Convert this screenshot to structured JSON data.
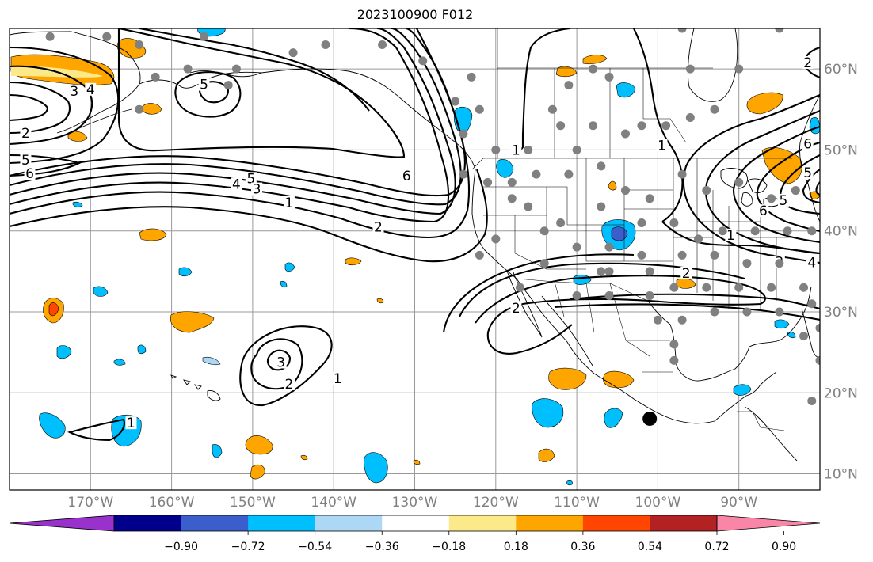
{
  "title": "2023100900 F012",
  "map": {
    "lon_range": [
      -180,
      -80
    ],
    "lat_range": [
      8,
      65
    ],
    "lon_ticks": [
      {
        "value": -170,
        "label": "170°W"
      },
      {
        "value": -160,
        "label": "160°W"
      },
      {
        "value": -150,
        "label": "150°W"
      },
      {
        "value": -140,
        "label": "140°W"
      },
      {
        "value": -130,
        "label": "130°W"
      },
      {
        "value": -120,
        "label": "120°W"
      },
      {
        "value": -110,
        "label": "110°W"
      },
      {
        "value": -100,
        "label": "100°W"
      },
      {
        "value": -90,
        "label": "90°W"
      }
    ],
    "lat_ticks": [
      {
        "value": 60,
        "label": "60°N"
      },
      {
        "value": 50,
        "label": "50°N"
      },
      {
        "value": 40,
        "label": "40°N"
      },
      {
        "value": 30,
        "label": "30°N"
      },
      {
        "value": 20,
        "label": "20°N"
      },
      {
        "value": 10,
        "label": "10°N"
      }
    ],
    "gridlines": true
  },
  "colorbar": {
    "ticks": [
      "−0.90",
      "−0.72",
      "−0.54",
      "−0.36",
      "−0.18",
      "0.18",
      "0.36",
      "0.54",
      "0.72",
      "0.90"
    ],
    "colors": [
      "#9932cc",
      "#00008b",
      "#3a5fcd",
      "#00bfff",
      "#add8f5",
      "#ffffff",
      "#fce98a",
      "#ffa500",
      "#ff4500",
      "#b22222",
      "#f986a6"
    ],
    "extend": "both"
  },
  "contour_labels": [
    {
      "text": "1",
      "lon": -165,
      "lat": 16.0
    },
    {
      "text": "3",
      "lon": -146.5,
      "lat": 23.5
    },
    {
      "text": "2",
      "lon": -145.5,
      "lat": 20.8
    },
    {
      "text": "1",
      "lon": -139.5,
      "lat": 21.5
    },
    {
      "text": "4",
      "lon": -152,
      "lat": 45.5
    },
    {
      "text": "5",
      "lon": -150.2,
      "lat": 46.2
    },
    {
      "text": "3",
      "lon": -149.5,
      "lat": 44.9
    },
    {
      "text": "1",
      "lon": -145.5,
      "lat": 43.2
    },
    {
      "text": "5",
      "lon": -178,
      "lat": 48.5
    },
    {
      "text": "6",
      "lon": -177.5,
      "lat": 46.8
    },
    {
      "text": "2",
      "lon": -178,
      "lat": 51.8
    },
    {
      "text": "3",
      "lon": -172,
      "lat": 57.0
    },
    {
      "text": "4",
      "lon": -170,
      "lat": 57.2
    },
    {
      "text": "5",
      "lon": -156,
      "lat": 57.8
    },
    {
      "text": "6",
      "lon": -131,
      "lat": 46.5
    },
    {
      "text": "2",
      "lon": -134.5,
      "lat": 40.2
    },
    {
      "text": "2",
      "lon": -117.5,
      "lat": 30.2
    },
    {
      "text": "1",
      "lon": -117.5,
      "lat": 49.7
    },
    {
      "text": "1",
      "lon": -99.5,
      "lat": 50.3
    },
    {
      "text": "1",
      "lon": -91,
      "lat": 39.2
    },
    {
      "text": "2",
      "lon": -96.5,
      "lat": 34.5
    },
    {
      "text": "6",
      "lon": -87,
      "lat": 42.2
    },
    {
      "text": "5",
      "lon": -84.5,
      "lat": 43.5
    },
    {
      "text": "4",
      "lon": -81,
      "lat": 35.8
    },
    {
      "text": "3",
      "lon": -85,
      "lat": 35.9
    },
    {
      "text": "5",
      "lon": -81.5,
      "lat": 46.9
    },
    {
      "text": "6",
      "lon": -81.5,
      "lat": 50.5
    },
    {
      "text": "2",
      "lon": -81.5,
      "lat": 60.5
    }
  ],
  "stations_lonlat": [
    [
      -175,
      64
    ],
    [
      -168,
      64
    ],
    [
      -156,
      64
    ],
    [
      -152,
      60
    ],
    [
      -164,
      63
    ],
    [
      -162,
      59
    ],
    [
      -164,
      55
    ],
    [
      -153,
      58
    ],
    [
      -158,
      60
    ],
    [
      -145,
      62
    ],
    [
      -141,
      63
    ],
    [
      -134,
      63
    ],
    [
      -129,
      61
    ],
    [
      -123,
      59
    ],
    [
      -125,
      56
    ],
    [
      -122,
      55
    ],
    [
      -124,
      52
    ],
    [
      -120,
      50
    ],
    [
      -113,
      55
    ],
    [
      -112,
      53
    ],
    [
      -116,
      50
    ],
    [
      -110,
      50
    ],
    [
      -108,
      53
    ],
    [
      -104,
      52
    ],
    [
      -102,
      53
    ],
    [
      -99,
      53
    ],
    [
      -96,
      54
    ],
    [
      -93,
      55
    ],
    [
      -90,
      60
    ],
    [
      -96,
      60
    ],
    [
      -106,
      59
    ],
    [
      -108,
      60
    ],
    [
      -85,
      65
    ],
    [
      -97,
      65
    ],
    [
      -111,
      58
    ],
    [
      -121,
      46
    ],
    [
      -124,
      47
    ],
    [
      -118,
      44
    ],
    [
      -115,
      47
    ],
    [
      -111,
      47
    ],
    [
      -107,
      48
    ],
    [
      -104,
      45
    ],
    [
      -101,
      44
    ],
    [
      -97,
      47
    ],
    [
      -94,
      45
    ],
    [
      -90,
      46
    ],
    [
      -86,
      44
    ],
    [
      -83,
      45
    ],
    [
      -107,
      43
    ],
    [
      -102,
      41
    ],
    [
      -98,
      41
    ],
    [
      -95,
      39
    ],
    [
      -92,
      40
    ],
    [
      -88,
      40
    ],
    [
      -84,
      40
    ],
    [
      -81,
      40
    ],
    [
      -112,
      41
    ],
    [
      -116,
      43
    ],
    [
      -120,
      39
    ],
    [
      -122,
      37
    ],
    [
      -114,
      36
    ],
    [
      -110,
      38
    ],
    [
      -106,
      38
    ],
    [
      -102,
      37
    ],
    [
      -97,
      37
    ],
    [
      -93,
      37
    ],
    [
      -89,
      36
    ],
    [
      -85,
      36
    ],
    [
      -106,
      35
    ],
    [
      -101,
      35
    ],
    [
      -98,
      33
    ],
    [
      -94,
      33
    ],
    [
      -90,
      33
    ],
    [
      -86,
      33
    ],
    [
      -82,
      33
    ],
    [
      -110,
      32
    ],
    [
      -106,
      32
    ],
    [
      -101,
      32
    ],
    [
      -97,
      29
    ],
    [
      -93,
      30
    ],
    [
      -89,
      30
    ],
    [
      -85,
      30
    ],
    [
      -81,
      31
    ],
    [
      -80,
      28
    ],
    [
      -82,
      27
    ],
    [
      -100,
      29
    ],
    [
      -98,
      26
    ],
    [
      -98,
      24
    ],
    [
      -80,
      24
    ],
    [
      -81,
      19
    ],
    [
      -118,
      46
    ],
    [
      -114,
      40
    ],
    [
      -117,
      33
    ],
    [
      -107,
      35
    ]
  ],
  "marker_lonlat": [
    -101,
    16.8
  ]
}
